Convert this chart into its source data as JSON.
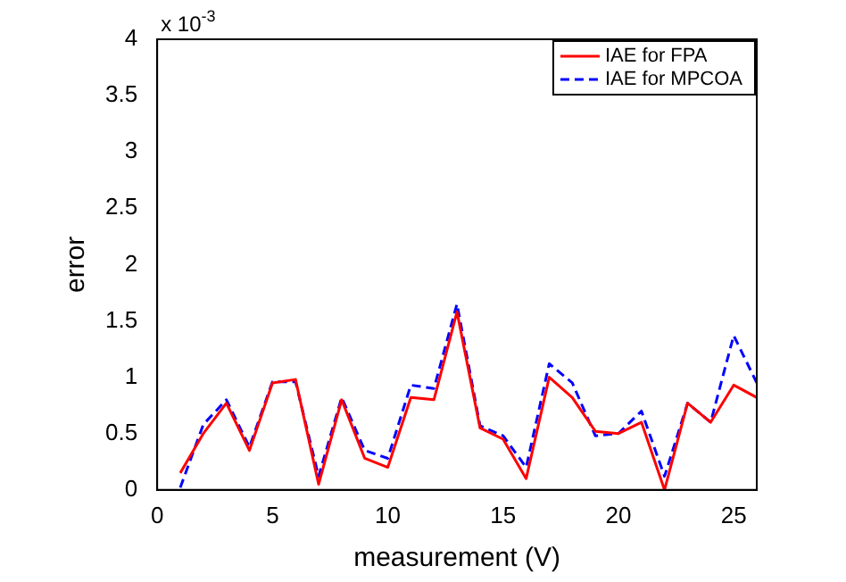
{
  "chart_data": {
    "type": "line",
    "xlabel": "measurement (V)",
    "ylabel": "error",
    "annotations": [
      "x 10$^{-3}$"
    ],
    "x": [
      1,
      2,
      3,
      4,
      5,
      6,
      7,
      8,
      9,
      10,
      11,
      12,
      13,
      14,
      15,
      16,
      17,
      18,
      19,
      20,
      21,
      22,
      23,
      24,
      25,
      26
    ],
    "series": [
      {
        "name": "IAE for FPA",
        "color": "#ff0000",
        "line_style": "solid",
        "values": [
          0.15,
          0.5,
          0.77,
          0.35,
          0.95,
          0.98,
          0.05,
          0.8,
          0.28,
          0.2,
          0.82,
          0.8,
          1.58,
          0.55,
          0.45,
          0.1,
          1.0,
          0.82,
          0.52,
          0.5,
          0.6,
          0.0,
          0.77,
          0.6,
          0.93,
          0.82
        ]
      },
      {
        "name": "IAE for MPCOA",
        "color": "#0000ff",
        "line_style": "dashed",
        "values": [
          0.02,
          0.58,
          0.8,
          0.38,
          0.96,
          0.96,
          0.12,
          0.82,
          0.35,
          0.28,
          0.93,
          0.9,
          1.65,
          0.57,
          0.48,
          0.2,
          1.12,
          0.95,
          0.48,
          0.5,
          0.7,
          0.12,
          0.77,
          0.6,
          1.37,
          0.95
        ]
      }
    ],
    "xlim": [
      0,
      26
    ],
    "xticks": [
      0,
      5,
      10,
      15,
      20,
      25
    ],
    "ylim": [
      0,
      4
    ],
    "yticks": [
      0,
      0.5,
      1,
      1.5,
      2,
      2.5,
      3,
      3.5,
      4
    ],
    "grid": false,
    "legend": "top right",
    "marker": "none"
  }
}
